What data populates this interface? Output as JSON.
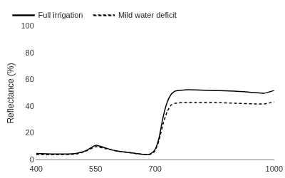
{
  "chart_data": {
    "type": "line",
    "y_label": "Reflectance (%)",
    "x": [
      400,
      450,
      500,
      525,
      550,
      575,
      600,
      650,
      680,
      690,
      700,
      710,
      720,
      730,
      740,
      750,
      775,
      800,
      850,
      900,
      950,
      975,
      1000
    ],
    "series": [
      {
        "name": "Full irrigation",
        "color": "#000000",
        "line_style": "solid",
        "values": [
          5,
          4.5,
          5,
          7,
          11,
          9,
          7,
          5,
          4,
          5,
          8,
          17,
          32,
          43,
          49,
          51.5,
          52.5,
          52.5,
          52,
          51.5,
          50.5,
          50,
          52
        ]
      },
      {
        "name": "Mild water deficit",
        "color": "#000000",
        "line_style": "dashed",
        "values": [
          4,
          4,
          4.5,
          6.5,
          10,
          8.5,
          7,
          5,
          4,
          4.5,
          7,
          15,
          27,
          36,
          41,
          42.5,
          43,
          43,
          43,
          42.5,
          42,
          42,
          43.5
        ]
      }
    ],
    "xlim": [
      400,
      1000
    ],
    "xticks": [
      400,
      550,
      700,
      1000
    ],
    "ylim": [
      0,
      100
    ],
    "yticks": [
      0,
      20,
      40,
      60,
      80,
      100
    ],
    "grid": false,
    "legend": "upper left"
  }
}
